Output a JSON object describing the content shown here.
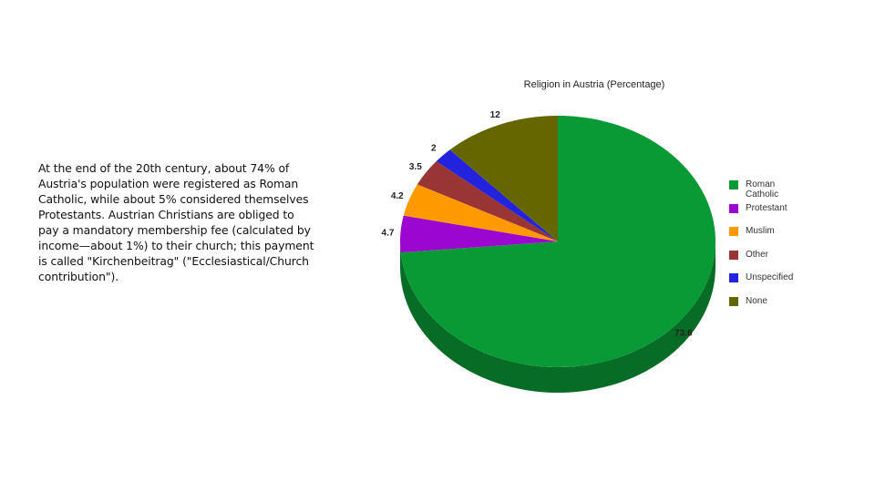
{
  "body_text": "At the end of the 20th century, about 74% of Austria's population were registered as Roman Catholic, while about 5% considered themselves Protestants. Austrian Christians are obliged to pay a mandatory membership fee (calculated by income—about 1%) to their church; this payment is called \"Kirchenbeitrag\" (\"Ecclesiastical/Church contribution\").",
  "chart_data": {
    "type": "pie",
    "title": "Religion in Austria (Percentage)",
    "categories": [
      "Roman Catholic",
      "Protestant",
      "Muslim",
      "Other",
      "Unspecified",
      "None"
    ],
    "values": [
      73.6,
      4.7,
      4.2,
      3.5,
      2,
      12
    ],
    "colors": [
      "#0a9a35",
      "#9b07d0",
      "#ff9900",
      "#993535",
      "#2323dd",
      "#666600"
    ],
    "legend": "right"
  }
}
